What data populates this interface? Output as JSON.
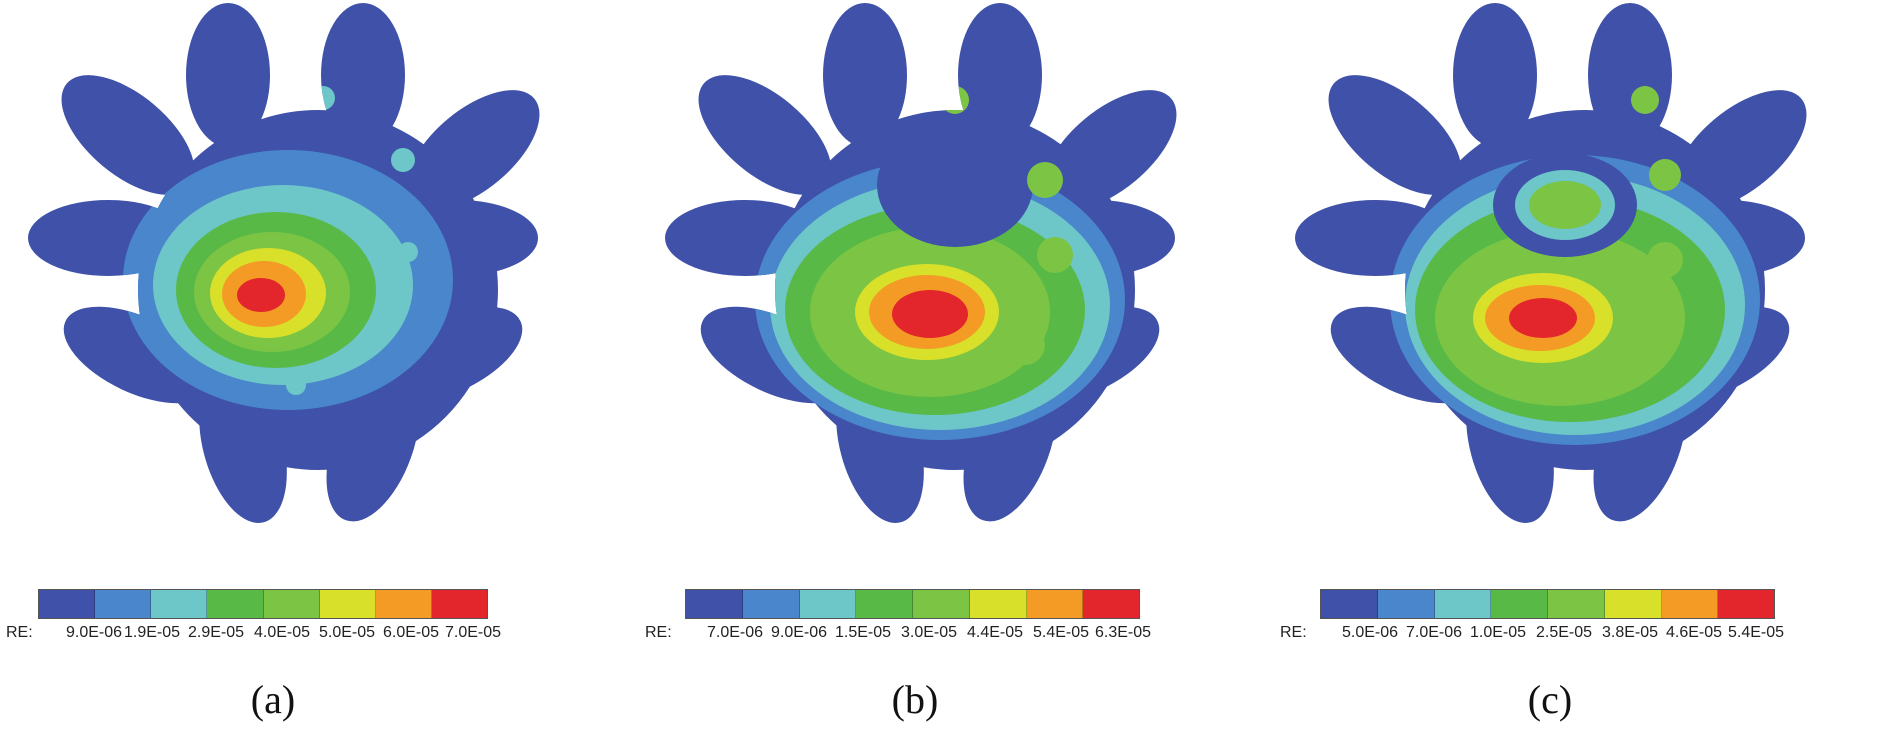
{
  "colors": {
    "c0": "#3f51a8",
    "c1": "#4a86cb",
    "c2": "#6dc6c8",
    "c3": "#58b947",
    "c4": "#7cc444",
    "c5": "#d9e02a",
    "c6": "#f39b24",
    "c7": "#e3262b"
  },
  "legend_prefix": "RE:",
  "panels": [
    {
      "caption": "(a)",
      "ticks": [
        "9.0E-06",
        "1.9E-05",
        "2.9E-05",
        "4.0E-05",
        "5.0E-05",
        "6.0E-05",
        "7.0E-05"
      ]
    },
    {
      "caption": "(b)",
      "ticks": [
        "7.0E-06",
        "9.0E-06",
        "1.5E-05",
        "3.0E-05",
        "4.4E-05",
        "5.4E-05",
        "6.3E-05"
      ]
    },
    {
      "caption": "(c)",
      "ticks": [
        "5.0E-06",
        "7.0E-06",
        "1.0E-05",
        "2.5E-05",
        "3.8E-05",
        "4.6E-05",
        "5.4E-05"
      ]
    }
  ]
}
